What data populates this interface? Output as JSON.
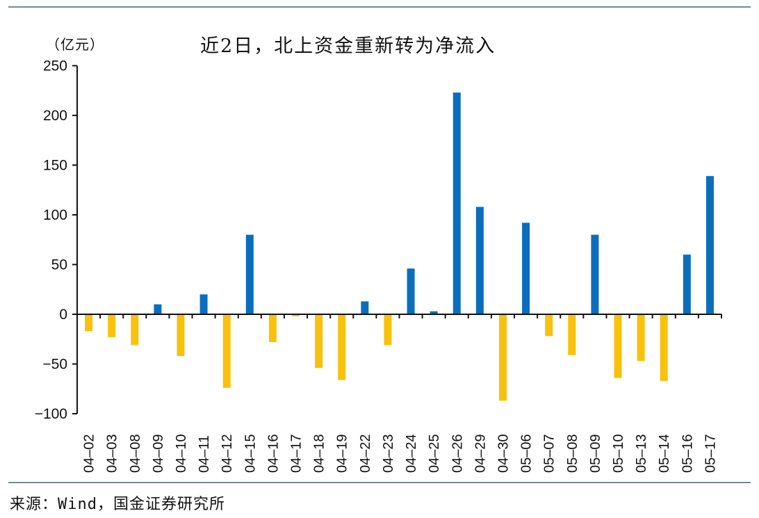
{
  "header": {
    "unit": "（亿元）",
    "title": "近2日，北上资金重新转为净流入"
  },
  "footer": {
    "source": "来源：Wind，国金证券研究所"
  },
  "colors": {
    "positive": "#0a6ebd",
    "negative": "#f8c10c",
    "axis": "#111111",
    "rule": "#6f8c99"
  },
  "chart_data": {
    "type": "bar",
    "title": "近2日，北上资金重新转为净流入",
    "xlabel": "",
    "ylabel": "（亿元）",
    "ylim": [
      -100,
      250
    ],
    "yticks": [
      250,
      200,
      150,
      100,
      50,
      0,
      -50,
      -100
    ],
    "grid": false,
    "legend": null,
    "categories": [
      "04-02",
      "04-03",
      "04-08",
      "04-09",
      "04-10",
      "04-11",
      "04-12",
      "04-15",
      "04-16",
      "04-17",
      "04-18",
      "04-19",
      "04-22",
      "04-23",
      "04-24",
      "04-25",
      "04-26",
      "04-29",
      "04-30",
      "05-06",
      "05-07",
      "05-08",
      "05-09",
      "05-10",
      "05-13",
      "05-14",
      "05-16",
      "05-17"
    ],
    "values": [
      -17,
      -23,
      -31,
      10,
      -42,
      20,
      -74,
      80,
      -28,
      -2,
      -54,
      -66,
      13,
      -31,
      46,
      3,
      223,
      108,
      -87,
      92,
      -22,
      -41,
      80,
      -64,
      -47,
      -67,
      60,
      139
    ],
    "color_rule": "positive values blue, negative values yellow"
  }
}
